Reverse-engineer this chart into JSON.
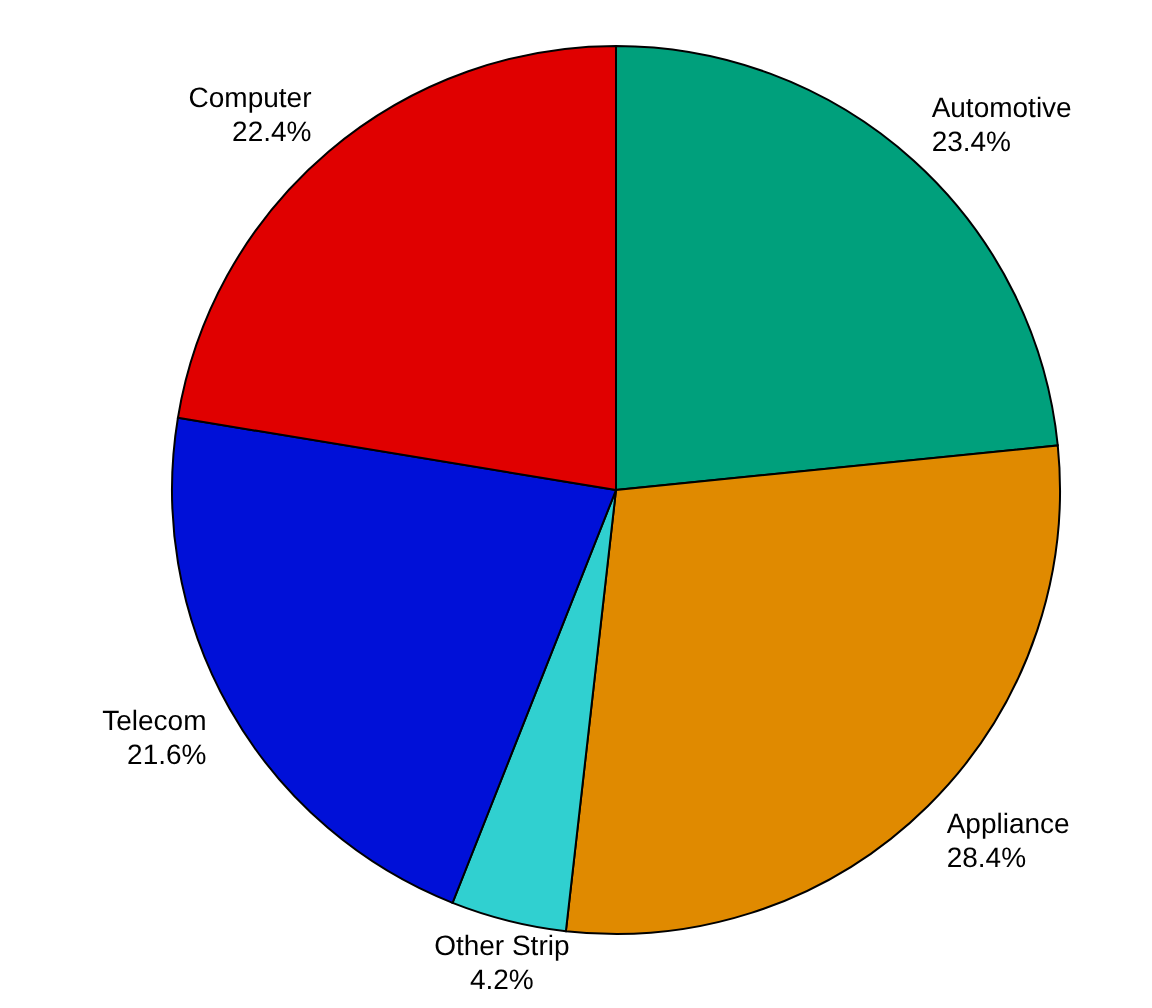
{
  "chart_data": {
    "type": "pie",
    "categories": [
      "Automotive",
      "Appliance",
      "Other Strip",
      "Telecom",
      "Computer"
    ],
    "values": [
      23.4,
      28.4,
      4.2,
      21.6,
      22.4
    ],
    "colors": [
      "#00a07c",
      "#e08a00",
      "#30d0d0",
      "#0010d8",
      "#e00000"
    ],
    "value_labels": [
      "23.4%",
      "28.4%",
      "4.2%",
      "21.6%",
      "22.4%"
    ]
  }
}
